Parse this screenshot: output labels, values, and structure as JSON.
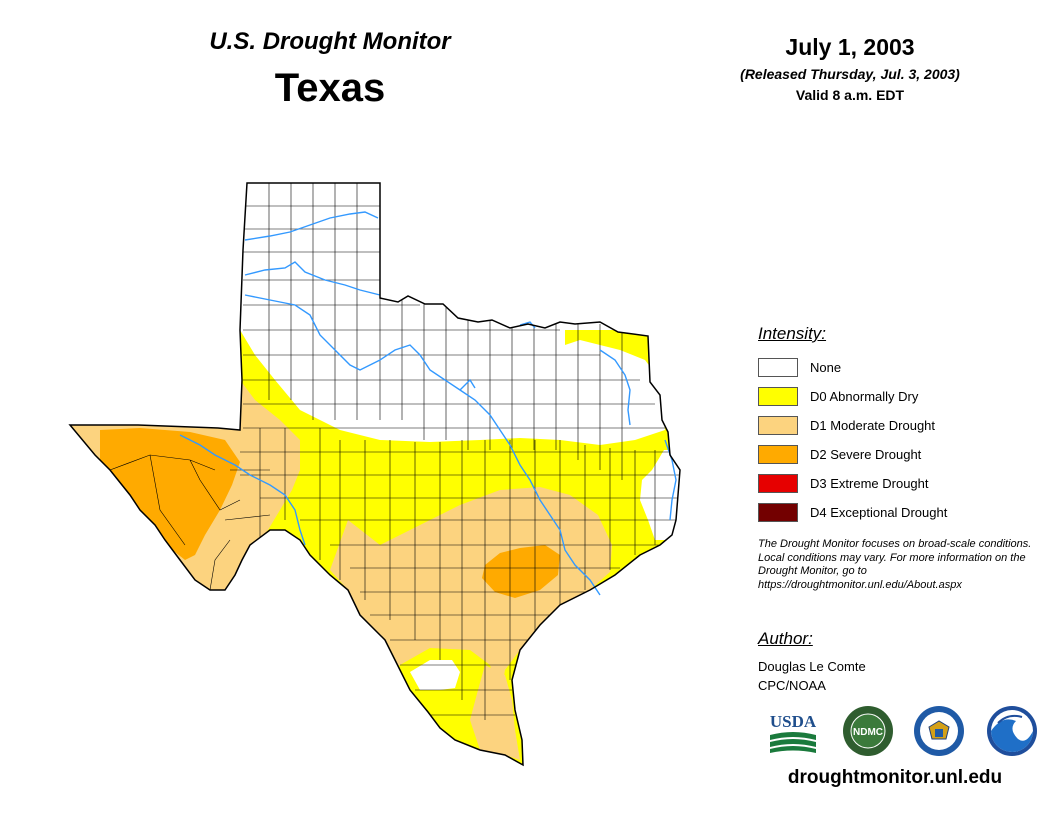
{
  "header": {
    "title": "U.S. Drought Monitor",
    "state": "Texas",
    "date": "July 1, 2003",
    "released": "(Released Thursday, Jul. 3, 2003)",
    "valid": "Valid 8 a.m. EDT"
  },
  "legend": {
    "title": "Intensity:",
    "items": [
      {
        "label": "None",
        "color": "#ffffff"
      },
      {
        "label": "D0 Abnormally Dry",
        "color": "#ffff00"
      },
      {
        "label": "D1 Moderate Drought",
        "color": "#fcd37f"
      },
      {
        "label": "D2 Severe Drought",
        "color": "#ffaa00"
      },
      {
        "label": "D3 Extreme Drought",
        "color": "#e60000"
      },
      {
        "label": "D4 Exceptional Drought",
        "color": "#730000"
      }
    ]
  },
  "note": "The Drought Monitor focuses on broad-scale conditions. Local conditions may vary. For more information on the Drought Monitor, go to https://droughtmonitor.unl.edu/About.aspx",
  "author": {
    "title": "Author:",
    "name": "Douglas Le Comte",
    "org": "CPC/NOAA"
  },
  "logos": {
    "usda": "USDA",
    "ndmc": "NDMC"
  },
  "url": "droughtmonitor.unl.edu",
  "colors": {
    "river": "#3399ff",
    "county_line": "#000000"
  }
}
